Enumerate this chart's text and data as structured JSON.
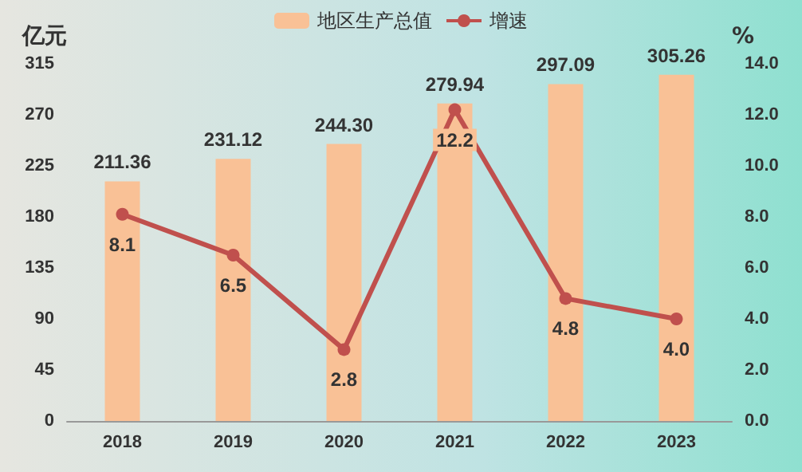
{
  "chart_data": {
    "type": "bar",
    "categories": [
      "2018",
      "2019",
      "2020",
      "2021",
      "2022",
      "2023"
    ],
    "series": [
      {
        "name": "地区生产总值",
        "color": "#f9c196",
        "values": [
          211.36,
          231.12,
          244.3,
          279.94,
          297.09,
          305.26
        ],
        "value_labels": [
          "211.36",
          "231.12",
          "244.30",
          "279.94",
          "297.09",
          "305.26"
        ]
      },
      {
        "name": "增速",
        "type": "line",
        "axis": "y2",
        "color": "#c0504d",
        "values": [
          8.1,
          6.5,
          2.8,
          12.2,
          4.8,
          4.0
        ],
        "value_labels": [
          "8.1",
          "6.5",
          "2.8",
          "12.2",
          "4.8",
          "4.0"
        ]
      }
    ],
    "ylabel": "亿元",
    "y2label": "%",
    "ylim": [
      0,
      315
    ],
    "yticks": [
      0,
      45,
      90,
      135,
      180,
      225,
      270,
      315
    ],
    "y2lim": [
      0,
      14
    ],
    "y2ticks": [
      {
        "value": 0,
        "label": "0.0"
      },
      {
        "value": 2,
        "label": "2.0"
      },
      {
        "value": 4,
        "label": "4.0"
      },
      {
        "value": 6,
        "label": "6.0"
      },
      {
        "value": 8,
        "label": "8.0"
      },
      {
        "value": 10,
        "label": "10.0"
      },
      {
        "value": 12,
        "label": "12.0"
      },
      {
        "value": 14,
        "label": "14.0"
      }
    ],
    "legend": "top",
    "marker": "circle",
    "line_style": "solid",
    "grid": false
  }
}
